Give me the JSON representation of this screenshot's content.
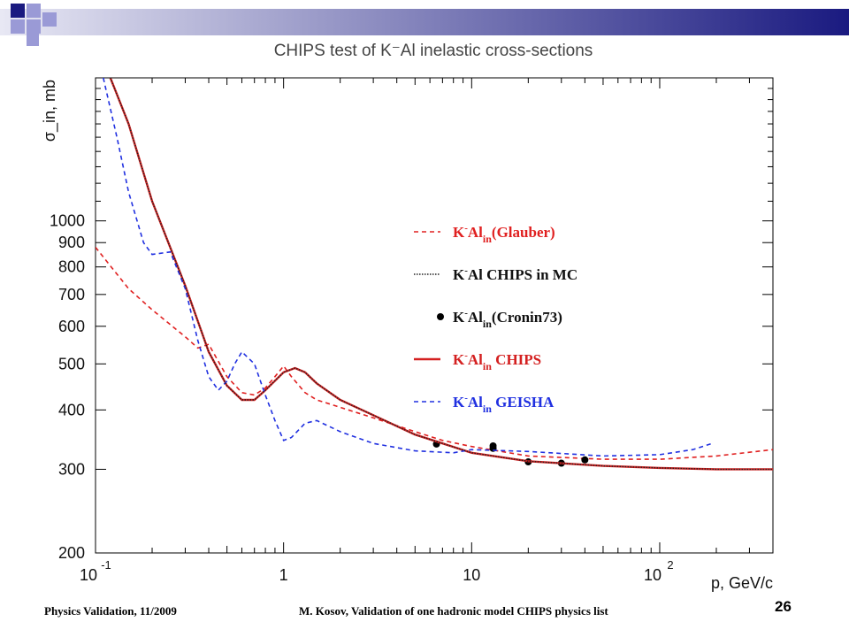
{
  "slide": {
    "footer_left": "Physics Validation, 11/2009",
    "footer_center": "M. Kosov,  Validation of one hadronic model CHIPS physics list",
    "slide_number": "26",
    "header_colors": {
      "square_dark": "#1a1a80",
      "square_light": "#9a9ad6",
      "band_start": "#e8e8f4",
      "band_end": "#1a1a80"
    }
  },
  "chart_data": {
    "type": "line",
    "title": "CHIPS test of K⁻Al inelastic cross-sections",
    "xlabel": "p, GeV/c",
    "ylabel": "σ_in, mb",
    "xscale": "log",
    "yscale": "log",
    "xlim": [
      0.1,
      400
    ],
    "ylim": [
      200,
      2000
    ],
    "x_ticks": [
      {
        "base": "10",
        "exp": "-1"
      },
      {
        "base": "1",
        "exp": ""
      },
      {
        "base": "10",
        "exp": ""
      },
      {
        "base": "10",
        "exp": "2"
      }
    ],
    "y_ticks": [
      "200",
      "300",
      "400",
      "500",
      "600",
      "700",
      "800",
      "900",
      "1000"
    ],
    "grid": false,
    "legend_position": "right-middle",
    "series": [
      {
        "name": "K⁻Al(in)(Glauber)",
        "legend": {
          "main": "K",
          "sup": "-",
          "mid": "Al",
          "sub": "in",
          "tail": "(Glauber)"
        },
        "style": "dashed",
        "color": "#e02020",
        "x": [
          0.1,
          0.15,
          0.2,
          0.3,
          0.35,
          0.4,
          0.5,
          0.6,
          0.7,
          0.8,
          0.9,
          1.0,
          1.1,
          1.3,
          1.5,
          2,
          3,
          5,
          7,
          10,
          20,
          50,
          100,
          200,
          400
        ],
        "y": [
          880,
          720,
          650,
          570,
          540,
          550,
          470,
          435,
          430,
          445,
          470,
          495,
          470,
          435,
          420,
          405,
          385,
          360,
          345,
          335,
          320,
          315,
          315,
          320,
          330
        ]
      },
      {
        "name": "K⁻Al CHIPS in MC",
        "legend": {
          "main": "K",
          "sup": "-",
          "mid": "Al CHIPS in MC",
          "sub": "",
          "tail": ""
        },
        "style": "dotted",
        "color": "#222222",
        "x": [
          0.12,
          0.15,
          0.2,
          0.3,
          0.4,
          0.5,
          0.6,
          0.7,
          0.8,
          1.0,
          1.15,
          1.3,
          1.5,
          2,
          3,
          5,
          7,
          10,
          20,
          50,
          100,
          200,
          400
        ],
        "y": [
          2000,
          1600,
          1100,
          730,
          530,
          450,
          420,
          420,
          440,
          480,
          490,
          480,
          455,
          420,
          390,
          355,
          340,
          325,
          312,
          305,
          302,
          300,
          300
        ]
      },
      {
        "name": "K⁻Al(in)(Cronin73)",
        "legend": {
          "main": "K",
          "sup": "-",
          "mid": "Al",
          "sub": "in",
          "tail": "(Cronin73)"
        },
        "type": "scatter",
        "color": "#000000",
        "x": [
          6.5,
          13.0,
          13.0,
          20.0,
          30.0,
          40.0
        ],
        "y": [
          339,
          336,
          332,
          311,
          309,
          314
        ]
      },
      {
        "name": "K⁻Al(in) CHIPS",
        "legend": {
          "main": "K",
          "sup": "-",
          "mid": "Al",
          "sub": "in",
          "tail": " CHIPS"
        },
        "style": "solid",
        "color": "#d42020",
        "x": [
          0.12,
          0.15,
          0.2,
          0.3,
          0.4,
          0.5,
          0.6,
          0.7,
          0.8,
          1.0,
          1.15,
          1.3,
          1.5,
          2,
          3,
          5,
          7,
          10,
          20,
          50,
          100,
          200,
          400
        ],
        "y": [
          2000,
          1600,
          1100,
          730,
          530,
          450,
          420,
          420,
          440,
          480,
          490,
          480,
          455,
          420,
          390,
          355,
          340,
          325,
          312,
          305,
          302,
          300,
          300
        ]
      },
      {
        "name": "K⁻Al(in) GEISHA",
        "legend": {
          "main": "K",
          "sup": "-",
          "mid": "Al",
          "sub": "in",
          "tail": " GEISHA"
        },
        "style": "dashed",
        "color": "#2030e0",
        "x": [
          0.11,
          0.13,
          0.15,
          0.18,
          0.2,
          0.25,
          0.3,
          0.35,
          0.4,
          0.45,
          0.5,
          0.55,
          0.6,
          0.7,
          0.8,
          0.9,
          1.0,
          1.1,
          1.3,
          1.5,
          2,
          3,
          5,
          8,
          10,
          20,
          50,
          100,
          150,
          190
        ],
        "y": [
          2000,
          1500,
          1150,
          900,
          850,
          860,
          720,
          560,
          470,
          440,
          460,
          500,
          530,
          500,
          430,
          380,
          345,
          350,
          375,
          380,
          360,
          340,
          328,
          325,
          330,
          327,
          320,
          322,
          330,
          340
        ]
      }
    ]
  }
}
